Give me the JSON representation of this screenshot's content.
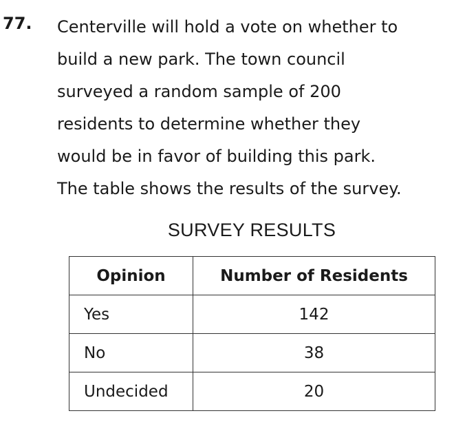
{
  "question": {
    "number": "77.",
    "lines": [
      "Centerville will hold a vote on whether to",
      "build a new park. The town council",
      "surveyed a random sample of 200",
      "residents to determine whether they",
      "would be in favor of building this park.",
      "The table shows the results of the survey."
    ]
  },
  "table": {
    "title": "SURVEY RESULTS",
    "headers": [
      "Opinion",
      "Number of Residents"
    ],
    "rows": [
      {
        "opinion": "Yes",
        "count": "142"
      },
      {
        "opinion": "No",
        "count": "38"
      },
      {
        "opinion": "Undecided",
        "count": "20"
      }
    ]
  }
}
